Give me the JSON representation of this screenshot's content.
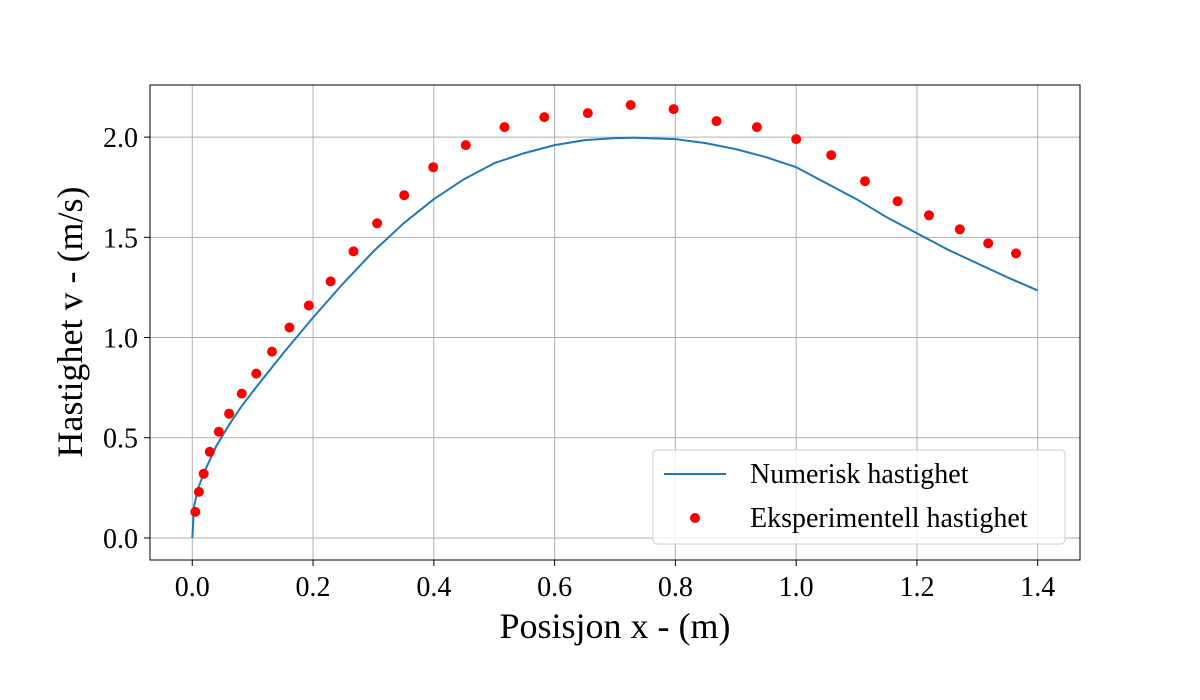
{
  "chart_data": {
    "type": "line",
    "title": "",
    "xlabel": "Posisjon x - (m)",
    "ylabel": "Hastighet v - (m/s)",
    "xlim": [
      -0.07,
      1.47
    ],
    "ylim": [
      -0.11,
      2.26
    ],
    "xticks": [
      0.0,
      0.2,
      0.4,
      0.6,
      0.8,
      1.0,
      1.2,
      1.4
    ],
    "xtick_labels": [
      "0.0",
      "0.2",
      "0.4",
      "0.6",
      "0.8",
      "1.0",
      "1.2",
      "1.4"
    ],
    "yticks": [
      0.0,
      0.5,
      1.0,
      1.5,
      2.0
    ],
    "ytick_labels": [
      "0.0",
      "0.5",
      "1.0",
      "1.5",
      "2.0"
    ],
    "grid": true,
    "legend_position": "bottom-right",
    "series": [
      {
        "name": "Numerisk hastighet",
        "kind": "line",
        "color": "#1f77b4",
        "x": [
          0.0,
          0.003,
          0.01,
          0.02,
          0.04,
          0.06,
          0.08,
          0.1,
          0.15,
          0.2,
          0.25,
          0.3,
          0.35,
          0.4,
          0.45,
          0.5,
          0.55,
          0.6,
          0.65,
          0.7,
          0.73,
          0.8,
          0.85,
          0.9,
          0.95,
          1.0,
          1.05,
          1.1,
          1.15,
          1.2,
          1.25,
          1.3,
          1.35,
          1.4
        ],
        "y": [
          0.0,
          0.16,
          0.25,
          0.33,
          0.46,
          0.56,
          0.65,
          0.73,
          0.92,
          1.1,
          1.27,
          1.43,
          1.57,
          1.69,
          1.79,
          1.87,
          1.92,
          1.96,
          1.985,
          1.995,
          1.997,
          1.99,
          1.97,
          1.94,
          1.9,
          1.85,
          1.77,
          1.69,
          1.6,
          1.52,
          1.44,
          1.37,
          1.3,
          1.235
        ]
      },
      {
        "name": "Eksperimentell hastighet",
        "kind": "scatter",
        "color": "#ff0000",
        "x": [
          0.005,
          0.011,
          0.019,
          0.029,
          0.044,
          0.061,
          0.082,
          0.106,
          0.132,
          0.161,
          0.193,
          0.229,
          0.267,
          0.306,
          0.351,
          0.399,
          0.453,
          0.517,
          0.583,
          0.655,
          0.726,
          0.797,
          0.868,
          0.935,
          1.0,
          1.058,
          1.114,
          1.168,
          1.22,
          1.271,
          1.318,
          1.364
        ],
        "y": [
          0.13,
          0.23,
          0.32,
          0.43,
          0.53,
          0.62,
          0.72,
          0.82,
          0.93,
          1.05,
          1.16,
          1.28,
          1.43,
          1.57,
          1.71,
          1.85,
          1.96,
          2.05,
          2.1,
          2.12,
          2.16,
          2.14,
          2.08,
          2.05,
          1.99,
          1.91,
          1.78,
          1.68,
          1.61,
          1.54,
          1.47,
          1.42
        ]
      }
    ]
  }
}
